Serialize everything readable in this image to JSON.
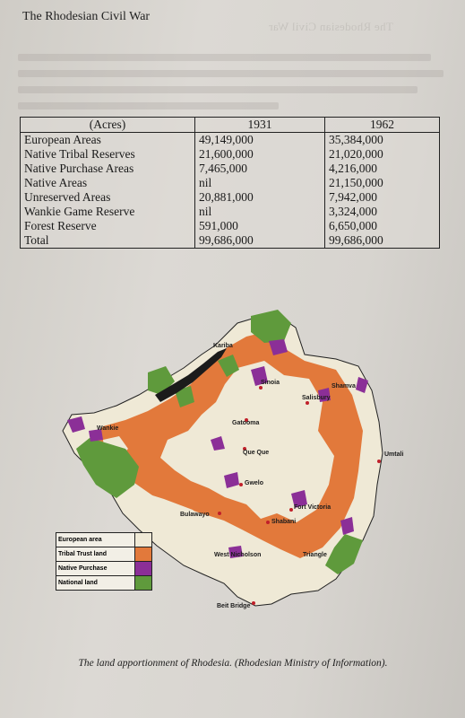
{
  "running_head": "The Rhodesian Civil War",
  "ghost_text": "The Rhodesian Civil War",
  "table": {
    "header": [
      "(Acres)",
      "1931",
      "1962"
    ],
    "rows": [
      [
        "European Areas",
        "49,149,000",
        "35,384,000"
      ],
      [
        "Native Tribal Reserves",
        "21,600,000",
        "21,020,000"
      ],
      [
        "Native Purchase Areas",
        "7,465,000",
        "4,216,000"
      ],
      [
        "Native Areas",
        "nil",
        "21,150,000"
      ],
      [
        "Unreserved Areas",
        "20,881,000",
        "7,942,000"
      ],
      [
        "Wankie Game Reserve",
        "nil",
        "3,324,000"
      ],
      [
        "Forest Reserve",
        "591,000",
        "6,650,000"
      ],
      [
        "Total",
        "99,686,000",
        "99,686,000"
      ]
    ]
  },
  "map": {
    "places": [
      "Kariba",
      "Sinoia",
      "Shamva",
      "Salisbury",
      "Gatooma",
      "Wankie",
      "Que Que",
      "Umtali",
      "Gwelo",
      "Fort Victoria",
      "Bulawayo",
      "Shabani",
      "West Nicholson",
      "Triangle",
      "Beit Bridge"
    ],
    "colors": {
      "european": "#efe9d6",
      "tribal": "#e2793b",
      "purchase": "#8b2f97",
      "national": "#5f9a3c",
      "lake": "#1b1b1b"
    },
    "legend": [
      {
        "label": "European area",
        "color": "#efe9d6"
      },
      {
        "label": "Tribal Trust land",
        "color": "#e2793b"
      },
      {
        "label": "Native Purchase",
        "color": "#8b2f97"
      },
      {
        "label": "National land",
        "color": "#5f9a3c"
      }
    ]
  },
  "caption": "The land apportionment of Rhodesia. (Rhodesian Ministry of Information)."
}
